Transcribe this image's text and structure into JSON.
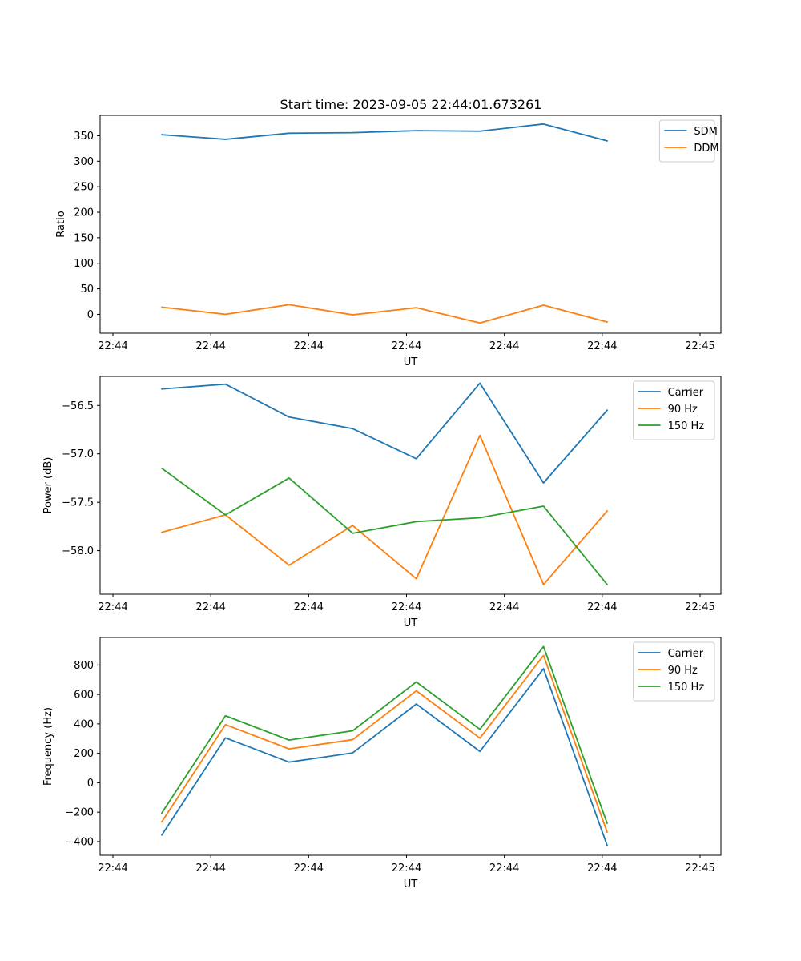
{
  "figure_title": "Start time: 2023-09-05 22:44:01.673261",
  "chart_data": [
    {
      "type": "line",
      "xlabel": "UT",
      "ylabel": "Ratio",
      "xticks": [
        "22:44",
        "22:44",
        "22:44",
        "22:44",
        "22:44",
        "22:44",
        "22:45"
      ],
      "xlim": [
        0,
        6
      ],
      "x": [
        0.5,
        1.15,
        1.8,
        2.45,
        3.1,
        3.75,
        4.4,
        5.05
      ],
      "ylim": [
        -37,
        390
      ],
      "yticks": [
        0,
        50,
        100,
        150,
        200,
        250,
        300,
        350
      ],
      "legend_loc": "top-right",
      "series": [
        {
          "name": "SDM",
          "color": "#1f77b4",
          "values": [
            352,
            343,
            355,
            356,
            360,
            359,
            373,
            340
          ]
        },
        {
          "name": "DDM",
          "color": "#ff7f0e",
          "values": [
            14,
            0,
            19,
            -1,
            13,
            -17,
            18,
            -15
          ]
        }
      ]
    },
    {
      "type": "line",
      "xlabel": "UT",
      "ylabel": "Power (dB)",
      "xticks": [
        "22:44",
        "22:44",
        "22:44",
        "22:44",
        "22:44",
        "22:44",
        "22:45"
      ],
      "xlim": [
        0,
        6
      ],
      "x": [
        0.5,
        1.15,
        1.8,
        2.45,
        3.1,
        3.75,
        4.4,
        5.05
      ],
      "ylim": [
        -58.45,
        -56.2
      ],
      "yticks": [
        -58.0,
        -57.5,
        -57.0,
        -56.5
      ],
      "ytick_labels": [
        "−58.0",
        "−57.5",
        "−57.0",
        "−56.5"
      ],
      "legend_loc": "top-right",
      "series": [
        {
          "name": "Carrier",
          "color": "#1f77b4",
          "values": [
            -56.33,
            -56.28,
            -56.62,
            -56.74,
            -57.05,
            -56.27,
            -57.3,
            -56.55
          ]
        },
        {
          "name": "90 Hz",
          "color": "#ff7f0e",
          "values": [
            -57.81,
            -57.63,
            -58.15,
            -57.74,
            -58.29,
            -56.81,
            -58.35,
            -57.59
          ]
        },
        {
          "name": "150 Hz",
          "color": "#2ca02c",
          "values": [
            -57.15,
            -57.63,
            -57.25,
            -57.82,
            -57.7,
            -57.66,
            -57.54,
            -58.35
          ]
        }
      ]
    },
    {
      "type": "line",
      "xlabel": "UT",
      "ylabel": "Frequency (Hz)",
      "xticks": [
        "22:44",
        "22:44",
        "22:44",
        "22:44",
        "22:44",
        "22:44",
        "22:45"
      ],
      "xlim": [
        0,
        6
      ],
      "x": [
        0.5,
        1.15,
        1.8,
        2.45,
        3.1,
        3.75,
        4.4,
        5.05
      ],
      "ylim": [
        -493,
        987
      ],
      "yticks": [
        -400,
        -200,
        0,
        200,
        400,
        600,
        800
      ],
      "ytick_labels": [
        "−400",
        "−200",
        "0",
        "200",
        "400",
        "600",
        "800"
      ],
      "legend_loc": "top-right",
      "series": [
        {
          "name": "Carrier",
          "color": "#1f77b4",
          "values": [
            -355,
            305,
            140,
            203,
            535,
            213,
            775,
            -425
          ]
        },
        {
          "name": "90 Hz",
          "color": "#ff7f0e",
          "values": [
            -265,
            395,
            230,
            293,
            625,
            303,
            865,
            -335
          ]
        },
        {
          "name": "150 Hz",
          "color": "#2ca02c",
          "values": [
            -205,
            455,
            290,
            353,
            685,
            363,
            925,
            -275
          ]
        }
      ]
    }
  ]
}
